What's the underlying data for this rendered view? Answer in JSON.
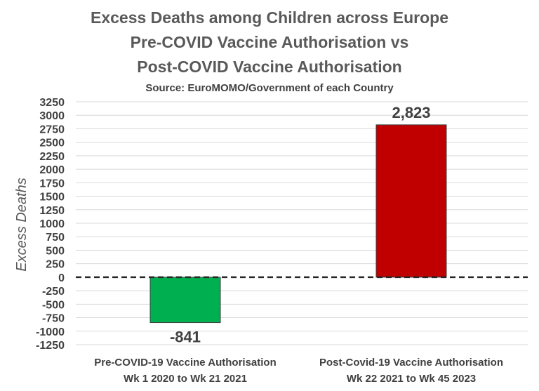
{
  "chart_data": {
    "type": "bar",
    "title_lines": [
      "Excess Deaths among Children across Europe",
      "Pre-COVID Vaccine Authorisation vs",
      "Post-COVID Vaccine Authorisation"
    ],
    "subtitle": "Source: EuroMOMO/Government of each Country",
    "ylabel": "Excess Deaths",
    "xlabel": "",
    "categories": [
      [
        "Pre-COVID-19 Vaccine Authorisation",
        "Wk 1 2020 to Wk 21 2021"
      ],
      [
        "Post-Covid-19 Vaccine Authorisation",
        "Wk 22 2021 to Wk 45 2023"
      ]
    ],
    "values": [
      -841,
      2823
    ],
    "data_labels": [
      "-841",
      "2,823"
    ],
    "bar_colors": [
      "#00b050",
      "#c00000"
    ],
    "ylim": [
      -1250,
      3250
    ],
    "yticks": [
      "3250",
      "3000",
      "2750",
      "2500",
      "2250",
      "2000",
      "1750",
      "1500",
      "1250",
      "1000",
      "750",
      "500",
      "250",
      "0",
      "-250",
      "-500",
      "-750",
      "-1000",
      "-1250"
    ],
    "grid": true,
    "zero_line": "dashed",
    "legend": "none"
  }
}
